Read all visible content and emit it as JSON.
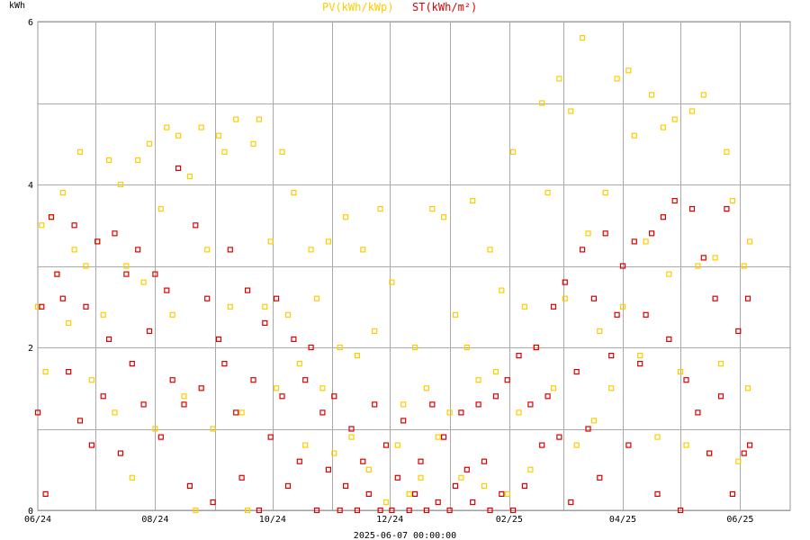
{
  "chart_data": {
    "type": "scatter",
    "ylabel": "kWh",
    "ylim": [
      0,
      6
    ],
    "yticks": [
      0,
      2,
      4,
      6
    ],
    "xlim": [
      "2024-06-01",
      "2025-06-27"
    ],
    "xticks": [
      {
        "label": "06/24",
        "date": "2024-06-01"
      },
      {
        "label": "08/24",
        "date": "2024-08-01"
      },
      {
        "label": "10/24",
        "date": "2024-10-01"
      },
      {
        "label": "12/24",
        "date": "2024-12-01"
      },
      {
        "label": "02/25",
        "date": "2025-02-01"
      },
      {
        "label": "04/25",
        "date": "2025-04-01"
      },
      {
        "label": "06/25",
        "date": "2025-06-01"
      }
    ],
    "grid": true,
    "footer": "2025-06-07 00:00:00",
    "series": [
      {
        "name": "PV(kWh/kWp)",
        "color": "#ffcc00",
        "points": [
          [
            "2024-06-01",
            2.5
          ],
          [
            "2024-06-03",
            3.5
          ],
          [
            "2024-06-05",
            1.7
          ],
          [
            "2024-06-08",
            3.6
          ],
          [
            "2024-06-11",
            2.9
          ],
          [
            "2024-06-14",
            3.9
          ],
          [
            "2024-06-17",
            2.3
          ],
          [
            "2024-06-20",
            3.2
          ],
          [
            "2024-06-23",
            4.4
          ],
          [
            "2024-06-26",
            3.0
          ],
          [
            "2024-06-29",
            1.6
          ],
          [
            "2024-07-02",
            3.3
          ],
          [
            "2024-07-05",
            2.4
          ],
          [
            "2024-07-08",
            4.3
          ],
          [
            "2024-07-11",
            1.2
          ],
          [
            "2024-07-14",
            4.0
          ],
          [
            "2024-07-17",
            3.0
          ],
          [
            "2024-07-20",
            0.4
          ],
          [
            "2024-07-23",
            4.3
          ],
          [
            "2024-07-26",
            2.8
          ],
          [
            "2024-07-29",
            4.5
          ],
          [
            "2024-08-01",
            1.0
          ],
          [
            "2024-08-04",
            3.7
          ],
          [
            "2024-08-07",
            4.7
          ],
          [
            "2024-08-10",
            2.4
          ],
          [
            "2024-08-13",
            4.6
          ],
          [
            "2024-08-16",
            1.4
          ],
          [
            "2024-08-19",
            4.1
          ],
          [
            "2024-08-22",
            0.0
          ],
          [
            "2024-08-25",
            4.7
          ],
          [
            "2024-08-28",
            3.2
          ],
          [
            "2024-08-31",
            1.0
          ],
          [
            "2024-09-03",
            4.6
          ],
          [
            "2024-09-06",
            4.4
          ],
          [
            "2024-09-09",
            2.5
          ],
          [
            "2024-09-12",
            4.8
          ],
          [
            "2024-09-15",
            1.2
          ],
          [
            "2024-09-18",
            0.0
          ],
          [
            "2024-09-21",
            4.5
          ],
          [
            "2024-09-24",
            4.8
          ],
          [
            "2024-09-27",
            2.5
          ],
          [
            "2024-09-30",
            3.3
          ],
          [
            "2024-10-03",
            1.5
          ],
          [
            "2024-10-06",
            4.4
          ],
          [
            "2024-10-09",
            2.4
          ],
          [
            "2024-10-12",
            3.9
          ],
          [
            "2024-10-15",
            1.8
          ],
          [
            "2024-10-18",
            0.8
          ],
          [
            "2024-10-21",
            3.2
          ],
          [
            "2024-10-24",
            2.6
          ],
          [
            "2024-10-27",
            1.5
          ],
          [
            "2024-10-30",
            3.3
          ],
          [
            "2024-11-02",
            0.7
          ],
          [
            "2024-11-05",
            2.0
          ],
          [
            "2024-11-08",
            3.6
          ],
          [
            "2024-11-11",
            0.9
          ],
          [
            "2024-11-14",
            1.9
          ],
          [
            "2024-11-17",
            3.2
          ],
          [
            "2024-11-20",
            0.5
          ],
          [
            "2024-11-23",
            2.2
          ],
          [
            "2024-11-26",
            3.7
          ],
          [
            "2024-11-29",
            0.1
          ],
          [
            "2024-12-02",
            2.8
          ],
          [
            "2024-12-05",
            0.8
          ],
          [
            "2024-12-08",
            1.3
          ],
          [
            "2024-12-11",
            0.2
          ],
          [
            "2024-12-14",
            2.0
          ],
          [
            "2024-12-17",
            0.4
          ],
          [
            "2024-12-20",
            1.5
          ],
          [
            "2024-12-23",
            3.7
          ],
          [
            "2024-12-26",
            0.9
          ],
          [
            "2024-12-29",
            3.6
          ],
          [
            "2025-01-01",
            1.2
          ],
          [
            "2025-01-04",
            2.4
          ],
          [
            "2025-01-07",
            0.4
          ],
          [
            "2025-01-10",
            2.0
          ],
          [
            "2025-01-13",
            3.8
          ],
          [
            "2025-01-16",
            1.6
          ],
          [
            "2025-01-19",
            0.3
          ],
          [
            "2025-01-22",
            3.2
          ],
          [
            "2025-01-25",
            1.7
          ],
          [
            "2025-01-28",
            2.7
          ],
          [
            "2025-01-31",
            0.2
          ],
          [
            "2025-02-03",
            4.4
          ],
          [
            "2025-02-06",
            1.2
          ],
          [
            "2025-02-09",
            2.5
          ],
          [
            "2025-02-12",
            0.5
          ],
          [
            "2025-02-15",
            2.0
          ],
          [
            "2025-02-18",
            5.0
          ],
          [
            "2025-02-21",
            3.9
          ],
          [
            "2025-02-24",
            1.5
          ],
          [
            "2025-02-27",
            5.3
          ],
          [
            "2025-03-02",
            2.6
          ],
          [
            "2025-03-05",
            4.9
          ],
          [
            "2025-03-08",
            0.8
          ],
          [
            "2025-03-11",
            5.8
          ],
          [
            "2025-03-14",
            3.4
          ],
          [
            "2025-03-17",
            1.1
          ],
          [
            "2025-03-20",
            2.2
          ],
          [
            "2025-03-23",
            3.9
          ],
          [
            "2025-03-26",
            1.5
          ],
          [
            "2025-03-29",
            5.3
          ],
          [
            "2025-04-01",
            2.5
          ],
          [
            "2025-04-04",
            5.4
          ],
          [
            "2025-04-07",
            4.6
          ],
          [
            "2025-04-10",
            1.9
          ],
          [
            "2025-04-13",
            3.3
          ],
          [
            "2025-04-16",
            5.1
          ],
          [
            "2025-04-19",
            0.9
          ],
          [
            "2025-04-22",
            4.7
          ],
          [
            "2025-04-25",
            2.9
          ],
          [
            "2025-04-28",
            4.8
          ],
          [
            "2025-05-01",
            1.7
          ],
          [
            "2025-05-04",
            0.8
          ],
          [
            "2025-05-07",
            4.9
          ],
          [
            "2025-05-10",
            3.0
          ],
          [
            "2025-05-13",
            5.1
          ],
          [
            "2025-05-16",
            0.7
          ],
          [
            "2025-05-19",
            3.1
          ],
          [
            "2025-05-22",
            1.8
          ],
          [
            "2025-05-25",
            4.4
          ],
          [
            "2025-05-28",
            3.8
          ],
          [
            "2025-05-31",
            0.6
          ],
          [
            "2025-06-03",
            3.0
          ],
          [
            "2025-06-05",
            1.5
          ],
          [
            "2025-06-06",
            3.3
          ]
        ]
      },
      {
        "name": "ST(kWh/m²)",
        "color": "#dd0000",
        "points": [
          [
            "2024-06-01",
            1.2
          ],
          [
            "2024-06-03",
            2.5
          ],
          [
            "2024-06-05",
            0.2
          ],
          [
            "2024-06-08",
            3.6
          ],
          [
            "2024-06-11",
            2.9
          ],
          [
            "2024-06-14",
            2.6
          ],
          [
            "2024-06-17",
            1.7
          ],
          [
            "2024-06-20",
            3.5
          ],
          [
            "2024-06-23",
            1.1
          ],
          [
            "2024-06-26",
            2.5
          ],
          [
            "2024-06-29",
            0.8
          ],
          [
            "2024-07-02",
            3.3
          ],
          [
            "2024-07-05",
            1.4
          ],
          [
            "2024-07-08",
            2.1
          ],
          [
            "2024-07-11",
            3.4
          ],
          [
            "2024-07-14",
            0.7
          ],
          [
            "2024-07-17",
            2.9
          ],
          [
            "2024-07-20",
            1.8
          ],
          [
            "2024-07-23",
            3.2
          ],
          [
            "2024-07-26",
            1.3
          ],
          [
            "2024-07-29",
            2.2
          ],
          [
            "2024-08-01",
            2.9
          ],
          [
            "2024-08-04",
            0.9
          ],
          [
            "2024-08-07",
            2.7
          ],
          [
            "2024-08-10",
            1.6
          ],
          [
            "2024-08-13",
            4.2
          ],
          [
            "2024-08-16",
            1.3
          ],
          [
            "2024-08-19",
            0.3
          ],
          [
            "2024-08-22",
            3.5
          ],
          [
            "2024-08-25",
            1.5
          ],
          [
            "2024-08-28",
            2.6
          ],
          [
            "2024-08-31",
            0.1
          ],
          [
            "2024-09-03",
            2.1
          ],
          [
            "2024-09-06",
            1.8
          ],
          [
            "2024-09-09",
            3.2
          ],
          [
            "2024-09-12",
            1.2
          ],
          [
            "2024-09-15",
            0.4
          ],
          [
            "2024-09-18",
            2.7
          ],
          [
            "2024-09-21",
            1.6
          ],
          [
            "2024-09-24",
            0.0
          ],
          [
            "2024-09-27",
            2.3
          ],
          [
            "2024-09-30",
            0.9
          ],
          [
            "2024-10-03",
            2.6
          ],
          [
            "2024-10-06",
            1.4
          ],
          [
            "2024-10-09",
            0.3
          ],
          [
            "2024-10-12",
            2.1
          ],
          [
            "2024-10-15",
            0.6
          ],
          [
            "2024-10-18",
            1.6
          ],
          [
            "2024-10-21",
            2.0
          ],
          [
            "2024-10-24",
            0.0
          ],
          [
            "2024-10-27",
            1.2
          ],
          [
            "2024-10-30",
            0.5
          ],
          [
            "2024-11-02",
            1.4
          ],
          [
            "2024-11-05",
            0.0
          ],
          [
            "2024-11-08",
            0.3
          ],
          [
            "2024-11-11",
            1.0
          ],
          [
            "2024-11-14",
            0.0
          ],
          [
            "2024-11-17",
            0.6
          ],
          [
            "2024-11-20",
            0.2
          ],
          [
            "2024-11-23",
            1.3
          ],
          [
            "2024-11-26",
            0.0
          ],
          [
            "2024-11-29",
            0.8
          ],
          [
            "2024-12-02",
            0.0
          ],
          [
            "2024-12-05",
            0.4
          ],
          [
            "2024-12-08",
            1.1
          ],
          [
            "2024-12-11",
            0.0
          ],
          [
            "2024-12-14",
            0.2
          ],
          [
            "2024-12-17",
            0.6
          ],
          [
            "2024-12-20",
            0.0
          ],
          [
            "2024-12-23",
            1.3
          ],
          [
            "2024-12-26",
            0.1
          ],
          [
            "2024-12-29",
            0.9
          ],
          [
            "2025-01-01",
            0.0
          ],
          [
            "2025-01-04",
            0.3
          ],
          [
            "2025-01-07",
            1.2
          ],
          [
            "2025-01-10",
            0.5
          ],
          [
            "2025-01-13",
            0.1
          ],
          [
            "2025-01-16",
            1.3
          ],
          [
            "2025-01-19",
            0.6
          ],
          [
            "2025-01-22",
            0.0
          ],
          [
            "2025-01-25",
            1.4
          ],
          [
            "2025-01-28",
            0.2
          ],
          [
            "2025-01-31",
            1.6
          ],
          [
            "2025-02-03",
            0.0
          ],
          [
            "2025-02-06",
            1.9
          ],
          [
            "2025-02-09",
            0.3
          ],
          [
            "2025-02-12",
            1.3
          ],
          [
            "2025-02-15",
            2.0
          ],
          [
            "2025-02-18",
            0.8
          ],
          [
            "2025-02-21",
            1.4
          ],
          [
            "2025-02-24",
            2.5
          ],
          [
            "2025-02-27",
            0.9
          ],
          [
            "2025-03-02",
            2.8
          ],
          [
            "2025-03-05",
            0.1
          ],
          [
            "2025-03-08",
            1.7
          ],
          [
            "2025-03-11",
            3.2
          ],
          [
            "2025-03-14",
            1.0
          ],
          [
            "2025-03-17",
            2.6
          ],
          [
            "2025-03-20",
            0.4
          ],
          [
            "2025-03-23",
            3.4
          ],
          [
            "2025-03-26",
            1.9
          ],
          [
            "2025-03-29",
            2.4
          ],
          [
            "2025-04-01",
            3.0
          ],
          [
            "2025-04-04",
            0.8
          ],
          [
            "2025-04-07",
            3.3
          ],
          [
            "2025-04-10",
            1.8
          ],
          [
            "2025-04-13",
            2.4
          ],
          [
            "2025-04-16",
            3.4
          ],
          [
            "2025-04-19",
            0.2
          ],
          [
            "2025-04-22",
            3.6
          ],
          [
            "2025-04-25",
            2.1
          ],
          [
            "2025-04-28",
            3.8
          ],
          [
            "2025-05-01",
            0.0
          ],
          [
            "2025-05-04",
            1.6
          ],
          [
            "2025-05-07",
            3.7
          ],
          [
            "2025-05-10",
            1.2
          ],
          [
            "2025-05-13",
            3.1
          ],
          [
            "2025-05-16",
            0.7
          ],
          [
            "2025-05-19",
            2.6
          ],
          [
            "2025-05-22",
            1.4
          ],
          [
            "2025-05-25",
            3.7
          ],
          [
            "2025-05-28",
            0.2
          ],
          [
            "2025-05-31",
            2.2
          ],
          [
            "2025-06-03",
            0.7
          ],
          [
            "2025-06-05",
            2.6
          ],
          [
            "2025-06-06",
            0.8
          ]
        ]
      }
    ]
  }
}
